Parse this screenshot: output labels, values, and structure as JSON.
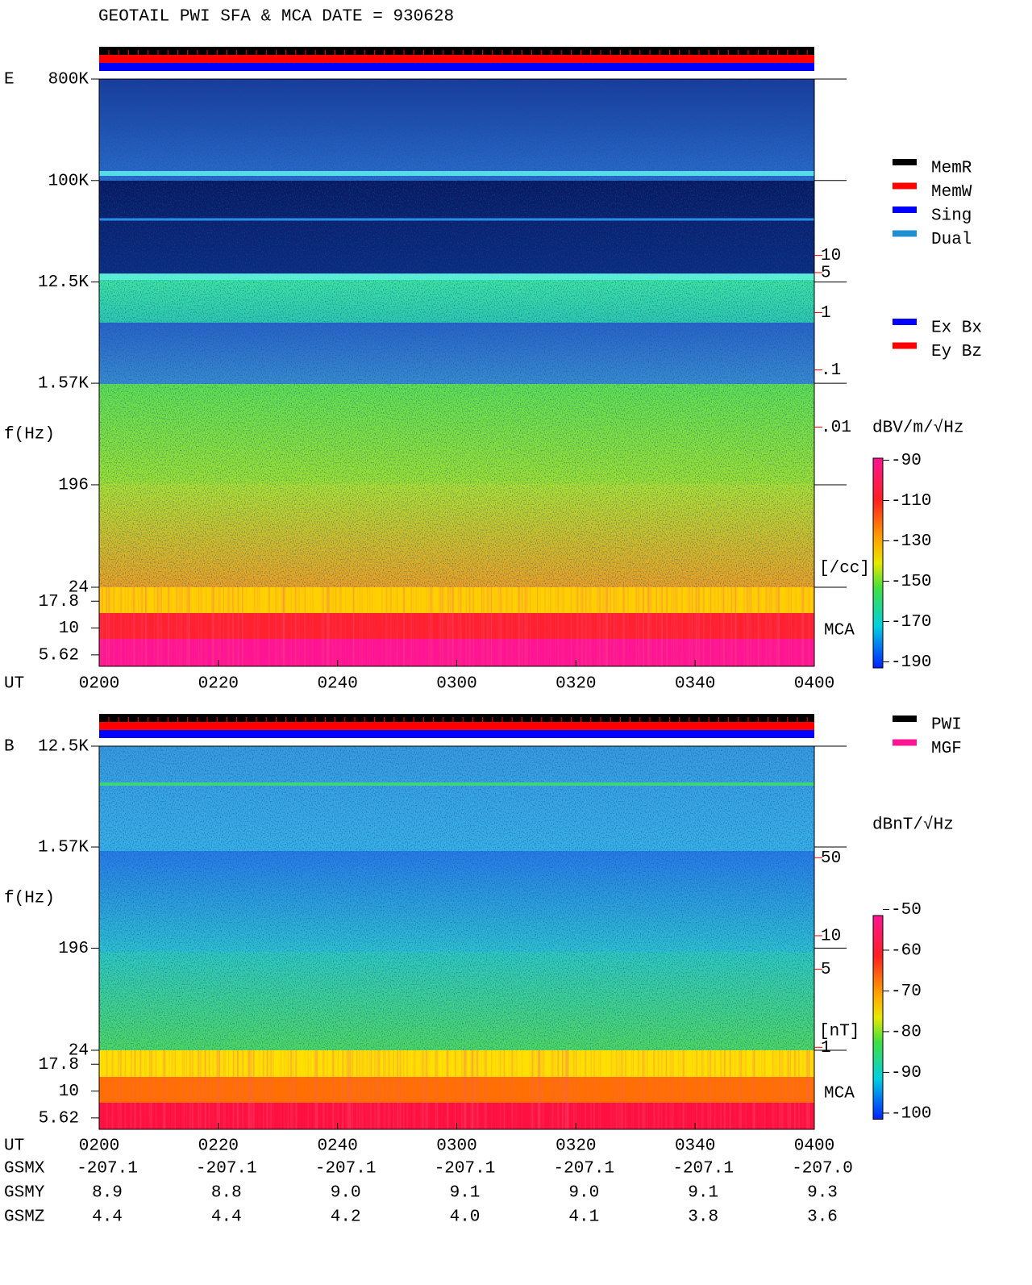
{
  "header": {
    "title": "GEOTAIL  PWI SFA & MCA   DATE = 930628"
  },
  "chart_data": [
    {
      "type": "spectrogram",
      "panel_label": "E",
      "ylabel": "f(Hz)",
      "ylog": true,
      "ylim": [
        24,
        800000
      ],
      "yticks": [
        {
          "value": 800000,
          "label": "800K"
        },
        {
          "value": 100000,
          "label": "100K"
        },
        {
          "value": 12500,
          "label": "12.5K"
        },
        {
          "value": 1570,
          "label": "1.57K"
        },
        196,
        24
      ],
      "mca_label": "MCA",
      "mca_ylim": [
        4.4,
        24
      ],
      "mca_yticks": [
        17.8,
        10,
        5.62
      ],
      "y2log": true,
      "y2lim": [
        1.6e-05,
        12000
      ],
      "y2label": "[/cc]",
      "y2ticks": [
        10,
        5,
        1,
        {
          "value": 0.1,
          "label": ".1"
        },
        {
          "value": 0.01,
          "label": ".01"
        }
      ],
      "colorbar_label": "dBV/m/√Hz",
      "clim": [
        -193,
        -89
      ],
      "cticks": [
        -90,
        -110,
        -130,
        -150,
        -170,
        -190
      ],
      "xlabel": "UT",
      "xticks": [
        "0200",
        "0220",
        "0240",
        "0300",
        "0320",
        "0340",
        "0400"
      ],
      "legends": [
        [
          {
            "name": "MemR",
            "color": "#000000"
          },
          {
            "name": "MemW",
            "color": "#ff0000"
          },
          {
            "name": "Sing",
            "color": "#0000ff"
          },
          {
            "name": "Dual",
            "color": "#2090d0"
          }
        ],
        [
          {
            "name": "Ex Bx",
            "color": "#0000ff"
          },
          {
            "name": "Ey Bz",
            "color": "#ff0000"
          }
        ]
      ]
    },
    {
      "type": "spectrogram",
      "panel_label": "B",
      "ylabel": "f(Hz)",
      "ylog": true,
      "ylim": [
        24,
        12500
      ],
      "yticks": [
        {
          "value": 12500,
          "label": "12.5K"
        },
        {
          "value": 1570,
          "label": "1.57K"
        },
        196,
        24
      ],
      "mca_label": "MCA",
      "mca_ylim": [
        4.4,
        24
      ],
      "mca_yticks": [
        17.8,
        10,
        5.62
      ],
      "y2log": true,
      "y2lim": [
        0.94,
        500
      ],
      "y2label": "[nT]",
      "y2ticks": [
        50,
        10,
        5,
        1
      ],
      "colorbar_label": "dBnT/√Hz",
      "clim": [
        -101.5,
        -51.5
      ],
      "cticks": [
        -50,
        -60,
        -70,
        -80,
        -90,
        -100
      ],
      "xlabel": "UT",
      "xticks": [
        "0200",
        "0220",
        "0240",
        "0300",
        "0320",
        "0340",
        "0400"
      ],
      "legends": [
        [
          {
            "name": "PWI",
            "color": "#000000"
          },
          {
            "name": "MGF",
            "color": "#ff1493"
          }
        ]
      ]
    }
  ],
  "orbit": {
    "rows": [
      {
        "label": "GSMX",
        "values": [
          "-207.1",
          "-207.1",
          "-207.1",
          "-207.1",
          "-207.1",
          "-207.1",
          "-207.0"
        ]
      },
      {
        "label": "GSMY",
        "values": [
          "8.9",
          "8.8",
          "9.0",
          "9.1",
          "9.0",
          "9.1",
          "9.3"
        ]
      },
      {
        "label": "GSMZ",
        "values": [
          "4.4",
          "4.4",
          "4.2",
          "4.0",
          "4.1",
          "3.8",
          "3.6"
        ]
      }
    ]
  }
}
